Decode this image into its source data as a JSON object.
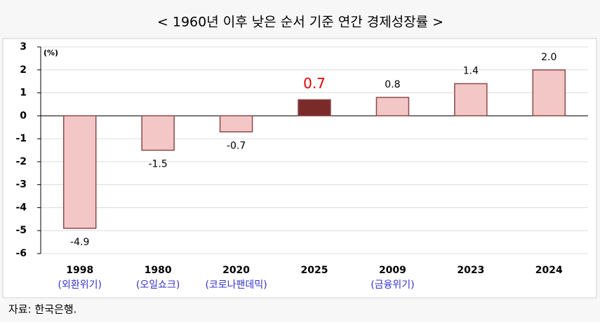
{
  "chart_data": {
    "type": "bar",
    "title": "< 1960년 이후 낮은 순서 기준 연간 경제성장률 >",
    "unit_label": "(%)",
    "categories": [
      "1998",
      "1980",
      "2020",
      "2025",
      "2009",
      "2023",
      "2024"
    ],
    "category_notes": [
      "(외환위기)",
      "(오일쇼크)",
      "(코로나팬데믹)",
      null,
      "(금융위기)",
      null,
      null
    ],
    "values": [
      -4.9,
      -1.5,
      -0.7,
      0.7,
      0.8,
      1.4,
      2.0
    ],
    "value_labels": [
      "-4.9",
      "-1.5",
      "-0.7",
      "0.7",
      "0.8",
      "1.4",
      "2.0"
    ],
    "colors": [
      "#f4c7c7",
      "#f4c7c7",
      "#f4c7c7",
      "#7b2a2a",
      "#f4c7c7",
      "#f4c7c7",
      "#f4c7c7"
    ],
    "label_colors": [
      "#000000",
      "#000000",
      "#000000",
      "#e60000",
      "#000000",
      "#000000",
      "#000000"
    ],
    "ylim": [
      -6,
      3
    ],
    "yticks": [
      -6,
      -5,
      -4,
      -3,
      -2,
      -1,
      0,
      1,
      2,
      3
    ],
    "grid": true,
    "source": "자료: 한국은행."
  }
}
